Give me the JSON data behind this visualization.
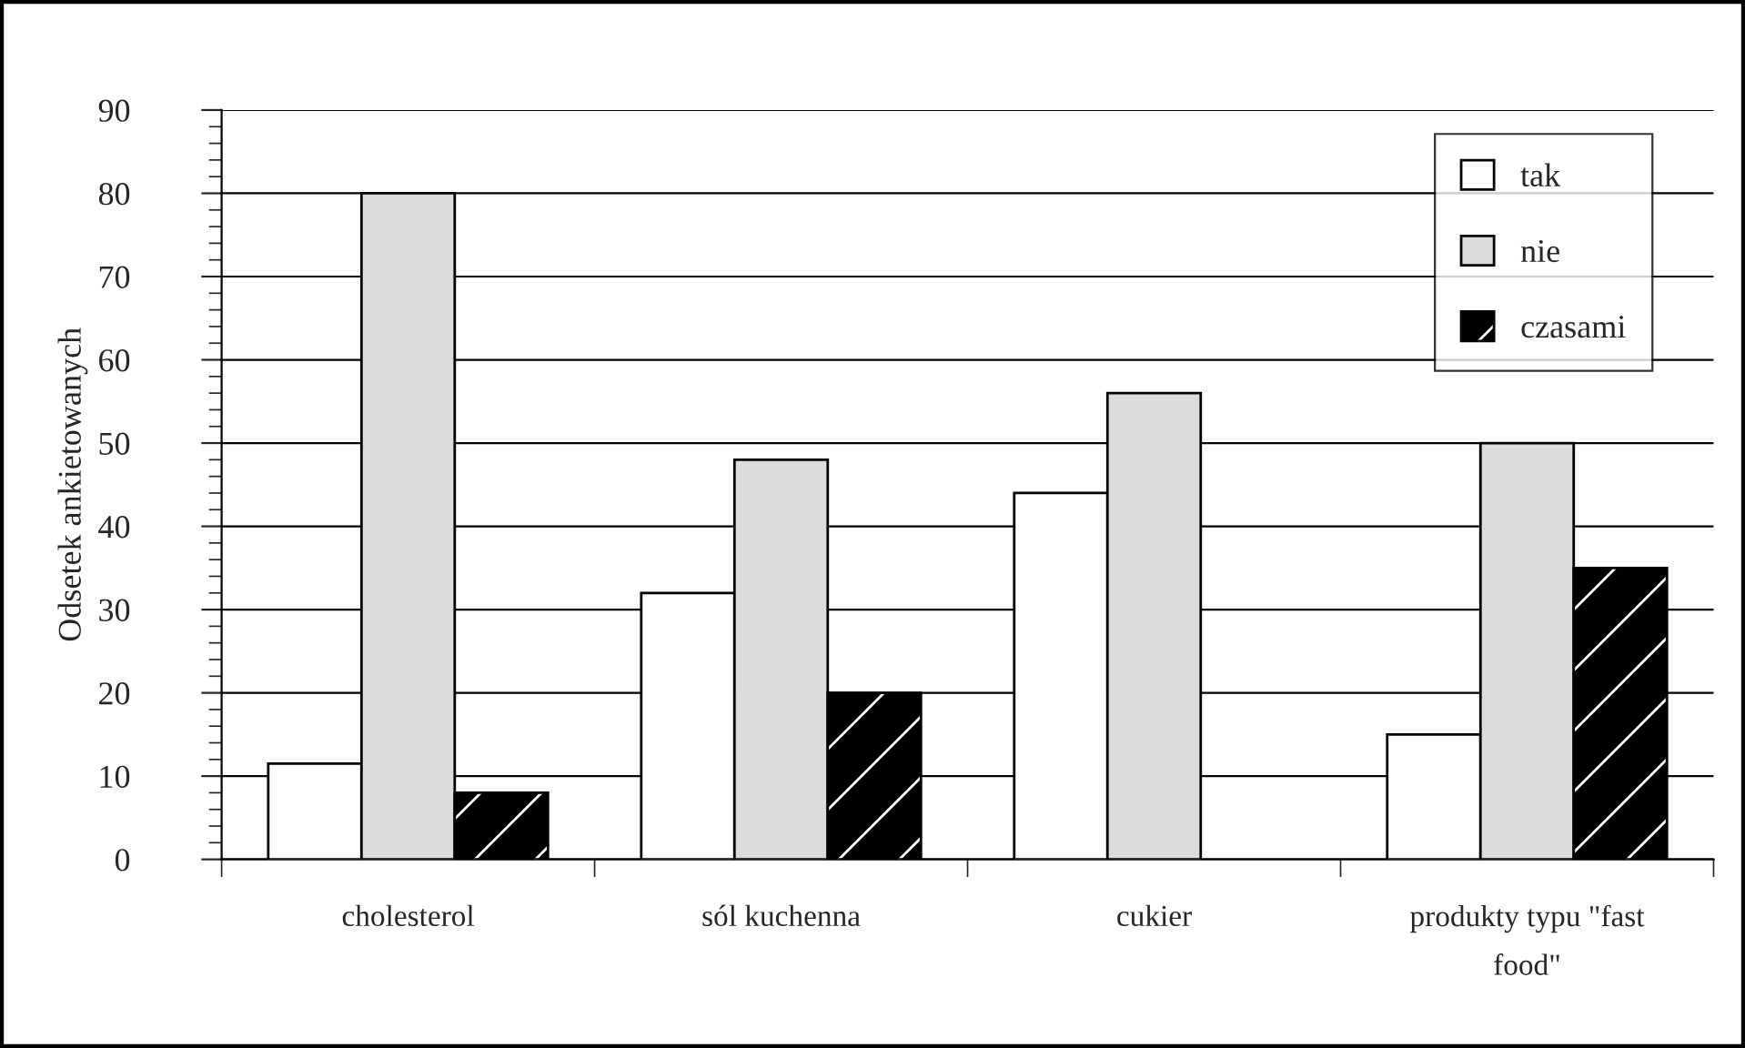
{
  "chart_data": {
    "type": "bar",
    "ylabel": "Odsetek ankietowanych",
    "categories": [
      "cholesterol",
      "sól kuchenna",
      "cukier",
      "produkty typu \"fast\nfood\""
    ],
    "series": [
      {
        "name": "tak",
        "color": "#ffffff",
        "values": [
          11.5,
          32,
          44,
          15
        ]
      },
      {
        "name": "nie",
        "color": "#dcdcdc",
        "values": [
          80,
          48,
          56,
          50
        ]
      },
      {
        "name": "czasami",
        "color": "#000000",
        "values": [
          8,
          20,
          null,
          35
        ]
      }
    ],
    "ylim": [
      0,
      90
    ],
    "yticks": [
      0,
      10,
      20,
      30,
      40,
      50,
      60,
      70,
      80,
      90
    ],
    "grid": "y",
    "legend": "top right"
  }
}
